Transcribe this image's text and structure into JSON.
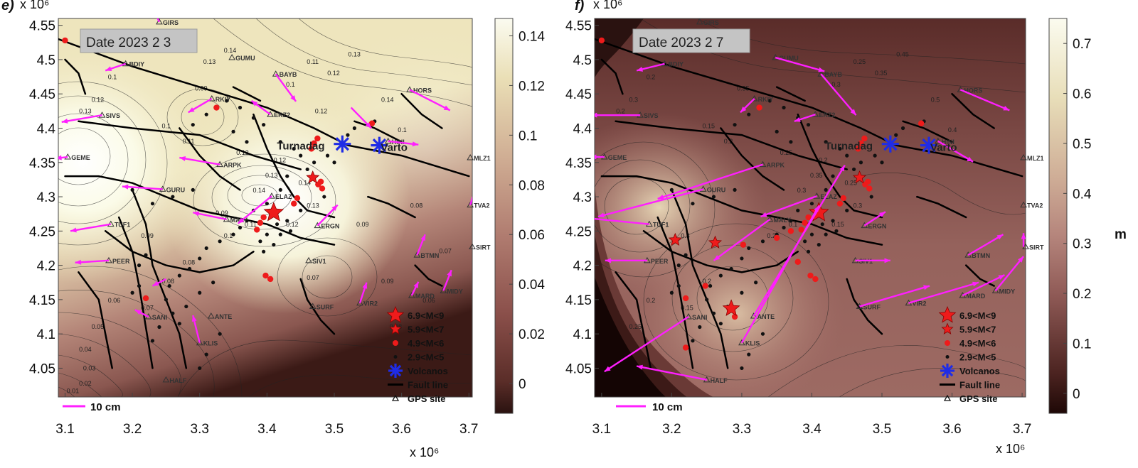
{
  "panels": [
    {
      "id": "e",
      "panel_letter": "e)",
      "date_label": "Date 2023 2 3",
      "y_exponent_label": "x 10⁶",
      "colorbar_ticks": [
        "0.14",
        "0.12",
        "0.1",
        "0.08",
        "0.06",
        "0.04",
        "0.02",
        "0"
      ],
      "colorbar_unit": "",
      "contour_labels": [
        "0.1",
        "0.12",
        "0.13",
        "0.09",
        "0.1",
        "0.11",
        "0.12",
        "0.14",
        "0.13",
        "0.12",
        "0.14",
        "0.13",
        "0.12",
        "0.11",
        "0.1",
        "0.1",
        "0.11",
        "0.12",
        "0.13",
        "0.14",
        "0.1",
        "0.09",
        "0.08",
        "0.07",
        "0.06",
        "0.05",
        "0.04",
        "0.03",
        "0.02",
        "0.01",
        "0.09",
        "0.08",
        "0.07",
        "0.06",
        "0.07",
        "0.09",
        "0.08",
        "0.13",
        "0.14",
        "0.12",
        "0.08",
        "0.09"
      ],
      "volcano_labels": [
        "Turnadag",
        "Varto"
      ],
      "scale_label": "10 cm"
    },
    {
      "id": "f",
      "panel_letter": "f)",
      "date_label": "Date 2023 2 7",
      "y_exponent_label": "x 10⁶",
      "colorbar_ticks": [
        "0.7",
        "0.6",
        "0.5",
        "0.4",
        "0.3",
        "0.2",
        "0.1",
        "0"
      ],
      "colorbar_unit": "m",
      "contour_labels": [
        "0.2",
        "0.3",
        "0.2",
        "0.35",
        "0.15",
        "0.2",
        "0.25",
        "0.3",
        "0.35",
        "0.2",
        "0.25",
        "0.3",
        "0.15",
        "0.1",
        "0.2",
        "0.3",
        "0.25",
        "0.35",
        "0.45",
        "0.5",
        "0.4",
        "0.3",
        "0.2",
        "0.15",
        "0.2",
        "0.25"
      ],
      "volcano_labels": [
        "Turnadag",
        "Varto"
      ],
      "scale_label": "10 cm"
    }
  ],
  "x_exponent_label": "x 10⁶",
  "x_ticks": [
    "3.1",
    "3.2",
    "3.3",
    "3.4",
    "3.5",
    "3.6",
    "3.7"
  ],
  "y_ticks": [
    "4.55",
    "4.5",
    "4.45",
    "4.4",
    "4.35",
    "4.3",
    "4.25",
    "4.2",
    "4.15",
    "4.1",
    "4.05"
  ],
  "x_range": [
    3.09,
    3.705
  ],
  "y_range": [
    4.008,
    4.56
  ],
  "legend": [
    {
      "symbol": "star-large",
      "label": "6.9<M<9"
    },
    {
      "symbol": "star-small",
      "label": "5.9<M<7"
    },
    {
      "symbol": "dot-red",
      "label": "4.9<M<6"
    },
    {
      "symbol": "dot-black",
      "label": "2.9<M<5"
    },
    {
      "symbol": "volcano",
      "label": "Volcanos"
    },
    {
      "symbol": "fault-line",
      "label": "Fault line"
    },
    {
      "symbol": "gps-triangle",
      "label": "GPS site"
    }
  ],
  "gps_stations": [
    {
      "name": "GIRS",
      "x": 3.24,
      "y": 4.555
    },
    {
      "name": "BDIY",
      "x": 3.19,
      "y": 4.494
    },
    {
      "name": "GUMU",
      "x": 3.348,
      "y": 4.503
    },
    {
      "name": "BAYB",
      "x": 3.413,
      "y": 4.479
    },
    {
      "name": "HORS",
      "x": 3.612,
      "y": 4.456
    },
    {
      "name": "RKIY",
      "x": 3.318,
      "y": 4.443
    },
    {
      "name": "SIVS",
      "x": 3.155,
      "y": 4.419
    },
    {
      "name": "ERZ2",
      "x": 3.405,
      "y": 4.42
    },
    {
      "name": "HINI",
      "x": 3.58,
      "y": 4.381
    },
    {
      "name": "GEME",
      "x": 3.104,
      "y": 4.358
    },
    {
      "name": "MLZ1",
      "x": 3.702,
      "y": 4.357
    },
    {
      "name": "ARPK",
      "x": 3.33,
      "y": 4.347
    },
    {
      "name": "GURU",
      "x": 3.245,
      "y": 4.311
    },
    {
      "name": "ELAZ",
      "x": 3.407,
      "y": 4.301
    },
    {
      "name": "TVA2",
      "x": 3.702,
      "y": 4.288
    },
    {
      "name": "TUF1",
      "x": 3.168,
      "y": 4.26
    },
    {
      "name": "MALY",
      "x": 3.34,
      "y": 4.267
    },
    {
      "name": "ERGN",
      "x": 3.475,
      "y": 4.258
    },
    {
      "name": "BTMN",
      "x": 3.623,
      "y": 4.215
    },
    {
      "name": "SIRT",
      "x": 3.705,
      "y": 4.227
    },
    {
      "name": "PEER",
      "x": 3.165,
      "y": 4.207
    },
    {
      "name": "SIV1",
      "x": 3.462,
      "y": 4.207
    },
    {
      "name": "MIDY",
      "x": 3.662,
      "y": 4.163
    },
    {
      "name": "MARD",
      "x": 3.615,
      "y": 4.156
    },
    {
      "name": "VIR2",
      "x": 3.538,
      "y": 4.145
    },
    {
      "name": "SURF",
      "x": 3.468,
      "y": 4.14
    },
    {
      "name": "ANTE",
      "x": 3.317,
      "y": 4.126
    },
    {
      "name": "SANI",
      "x": 3.224,
      "y": 4.125
    },
    {
      "name": "KLIS",
      "x": 3.3,
      "y": 4.087
    },
    {
      "name": "HALF",
      "x": 3.25,
      "y": 4.033
    }
  ],
  "volcanoes": [
    {
      "name": "Turnadag",
      "x": 3.512,
      "y": 4.377
    },
    {
      "name": "Varto",
      "x": 3.567,
      "y": 4.375
    }
  ],
  "earthquakes_large": [
    {
      "x": 3.41,
      "y": 4.277
    }
  ],
  "earthquakes_medium": [
    {
      "x": 3.468,
      "y": 4.328
    }
  ],
  "earthquakes_medium_f": [
    {
      "x": 3.468,
      "y": 4.328
    },
    {
      "x": 3.205,
      "y": 4.237
    },
    {
      "x": 3.262,
      "y": 4.233
    }
  ],
  "earthquakes_red_dots": [
    {
      "x": 3.48,
      "y": 4.322
    },
    {
      "x": 3.482,
      "y": 4.312
    },
    {
      "x": 3.476,
      "y": 4.318
    },
    {
      "x": 3.466,
      "y": 4.37
    },
    {
      "x": 3.47,
      "y": 4.378
    },
    {
      "x": 3.475,
      "y": 4.385
    },
    {
      "x": 3.39,
      "y": 4.262
    },
    {
      "x": 3.385,
      "y": 4.252
    },
    {
      "x": 3.395,
      "y": 4.27
    },
    {
      "x": 3.44,
      "y": 4.29
    },
    {
      "x": 3.445,
      "y": 4.298
    },
    {
      "x": 3.398,
      "y": 4.185
    },
    {
      "x": 3.405,
      "y": 4.18
    },
    {
      "x": 3.22,
      "y": 4.152
    },
    {
      "x": 3.556,
      "y": 4.407
    },
    {
      "x": 3.325,
      "y": 4.43
    },
    {
      "x": 3.1,
      "y": 4.528
    }
  ],
  "earthquakes_red_dots_f_extra": [
    {
      "x": 3.282,
      "y": 4.137
    },
    {
      "x": 3.29,
      "y": 4.125
    },
    {
      "x": 3.302,
      "y": 4.23
    },
    {
      "x": 3.35,
      "y": 4.24
    },
    {
      "x": 3.37,
      "y": 4.25
    },
    {
      "x": 3.38,
      "y": 4.205
    },
    {
      "x": 3.22,
      "y": 4.08
    },
    {
      "x": 3.248,
      "y": 4.17
    }
  ],
  "earthquakes_black_dots": [
    {
      "x": 3.34,
      "y": 4.44
    },
    {
      "x": 3.36,
      "y": 4.43
    },
    {
      "x": 3.38,
      "y": 4.415
    },
    {
      "x": 3.395,
      "y": 4.405
    },
    {
      "x": 3.31,
      "y": 4.42
    },
    {
      "x": 3.29,
      "y": 4.405
    },
    {
      "x": 3.35,
      "y": 4.395
    },
    {
      "x": 3.37,
      "y": 4.38
    },
    {
      "x": 3.42,
      "y": 4.38
    },
    {
      "x": 3.44,
      "y": 4.37
    },
    {
      "x": 3.45,
      "y": 4.36
    },
    {
      "x": 3.49,
      "y": 4.36
    },
    {
      "x": 3.5,
      "y": 4.35
    },
    {
      "x": 3.43,
      "y": 4.33
    },
    {
      "x": 3.42,
      "y": 4.31
    },
    {
      "x": 3.4,
      "y": 4.29
    },
    {
      "x": 3.38,
      "y": 4.28
    },
    {
      "x": 3.37,
      "y": 4.265
    },
    {
      "x": 3.36,
      "y": 4.255
    },
    {
      "x": 3.35,
      "y": 4.245
    },
    {
      "x": 3.33,
      "y": 4.235
    },
    {
      "x": 3.31,
      "y": 4.225
    },
    {
      "x": 3.3,
      "y": 4.21
    },
    {
      "x": 3.285,
      "y": 4.195
    },
    {
      "x": 3.27,
      "y": 4.185
    },
    {
      "x": 3.255,
      "y": 4.17
    },
    {
      "x": 3.25,
      "y": 4.15
    },
    {
      "x": 3.26,
      "y": 4.13
    },
    {
      "x": 3.27,
      "y": 4.115
    },
    {
      "x": 3.24,
      "y": 4.11
    },
    {
      "x": 3.23,
      "y": 4.09
    },
    {
      "x": 3.3,
      "y": 4.16
    },
    {
      "x": 3.32,
      "y": 4.175
    },
    {
      "x": 3.28,
      "y": 4.14
    },
    {
      "x": 3.46,
      "y": 4.34
    },
    {
      "x": 3.47,
      "y": 4.35
    },
    {
      "x": 3.53,
      "y": 4.4
    },
    {
      "x": 3.56,
      "y": 4.41
    },
    {
      "x": 3.52,
      "y": 4.39
    },
    {
      "x": 3.485,
      "y": 4.3
    },
    {
      "x": 3.45,
      "y": 4.28
    },
    {
      "x": 3.43,
      "y": 4.265
    },
    {
      "x": 3.435,
      "y": 4.25
    },
    {
      "x": 3.415,
      "y": 4.26
    },
    {
      "x": 3.42,
      "y": 4.245
    },
    {
      "x": 3.4,
      "y": 4.245
    },
    {
      "x": 3.39,
      "y": 4.235
    },
    {
      "x": 3.41,
      "y": 4.23
    },
    {
      "x": 3.395,
      "y": 4.22
    },
    {
      "x": 3.2,
      "y": 4.31
    },
    {
      "x": 3.23,
      "y": 4.29
    },
    {
      "x": 3.26,
      "y": 4.3
    },
    {
      "x": 3.29,
      "y": 4.31
    },
    {
      "x": 3.21,
      "y": 4.2
    },
    {
      "x": 3.22,
      "y": 4.215
    },
    {
      "x": 3.2,
      "y": 4.16
    },
    {
      "x": 3.21,
      "y": 4.17
    },
    {
      "x": 3.3,
      "y": 4.05
    },
    {
      "x": 3.31,
      "y": 4.07
    },
    {
      "x": 3.33,
      "y": 4.1
    }
  ],
  "gps_vectors_e": [
    {
      "x": 3.24,
      "y": 4.555,
      "dx": -0.008,
      "dy": 0.016
    },
    {
      "x": 3.19,
      "y": 4.494,
      "dx": -0.03,
      "dy": -0.01
    },
    {
      "x": 3.413,
      "y": 4.479,
      "dx": 0.03,
      "dy": -0.04
    },
    {
      "x": 3.318,
      "y": 4.443,
      "dx": -0.035,
      "dy": -0.02
    },
    {
      "x": 3.155,
      "y": 4.419,
      "dx": -0.06,
      "dy": -0.01
    },
    {
      "x": 3.405,
      "y": 4.42,
      "dx": -0.028,
      "dy": 0.02
    },
    {
      "x": 3.104,
      "y": 4.358,
      "dx": -0.018,
      "dy": -0.002
    },
    {
      "x": 3.33,
      "y": 4.347,
      "dx": -0.06,
      "dy": 0.01
    },
    {
      "x": 3.245,
      "y": 4.311,
      "dx": -0.06,
      "dy": 0.004
    },
    {
      "x": 3.407,
      "y": 4.301,
      "dx": -0.05,
      "dy": -0.04
    },
    {
      "x": 3.34,
      "y": 4.267,
      "dx": -0.05,
      "dy": 0.01
    },
    {
      "x": 3.168,
      "y": 4.26,
      "dx": -0.06,
      "dy": -0.01
    },
    {
      "x": 3.165,
      "y": 4.207,
      "dx": -0.05,
      "dy": -0.003
    },
    {
      "x": 3.475,
      "y": 4.258,
      "dx": 0.03,
      "dy": 0.03
    },
    {
      "x": 3.612,
      "y": 4.456,
      "dx": 0.06,
      "dy": -0.03
    },
    {
      "x": 3.58,
      "y": 4.381,
      "dx": 0.045,
      "dy": -0.005
    },
    {
      "x": 3.538,
      "y": 4.145,
      "dx": 0.01,
      "dy": 0.03
    },
    {
      "x": 3.623,
      "y": 4.215,
      "dx": 0.012,
      "dy": 0.03
    },
    {
      "x": 3.662,
      "y": 4.163,
      "dx": 0.012,
      "dy": 0.03
    },
    {
      "x": 3.702,
      "y": 4.288,
      "dx": 0.01,
      "dy": 0.03
    },
    {
      "x": 3.3,
      "y": 4.087,
      "dx": -0.01,
      "dy": 0.04
    },
    {
      "x": 3.224,
      "y": 4.125,
      "dx": -0.02,
      "dy": 0.01
    },
    {
      "x": 3.25,
      "y": 4.18,
      "dx": -0.02,
      "dy": -0.01
    },
    {
      "x": 3.525,
      "y": 4.43,
      "dx": 0.03,
      "dy": -0.03
    },
    {
      "x": 3.615,
      "y": 4.156,
      "dx": 0.01,
      "dy": 0.02
    }
  ],
  "gps_vectors_f": [
    {
      "x": 3.19,
      "y": 4.494,
      "dx": -0.04,
      "dy": -0.01
    },
    {
      "x": 3.348,
      "y": 4.503,
      "dx": 0.07,
      "dy": -0.02
    },
    {
      "x": 3.413,
      "y": 4.479,
      "dx": 0.05,
      "dy": -0.06
    },
    {
      "x": 3.612,
      "y": 4.456,
      "dx": 0.07,
      "dy": -0.03
    },
    {
      "x": 3.318,
      "y": 4.443,
      "dx": -0.02,
      "dy": -0.02
    },
    {
      "x": 3.155,
      "y": 4.419,
      "dx": -0.07,
      "dy": 0.0
    },
    {
      "x": 3.405,
      "y": 4.42,
      "dx": -0.03,
      "dy": -0.01
    },
    {
      "x": 3.58,
      "y": 4.381,
      "dx": 0.05,
      "dy": -0.03
    },
    {
      "x": 3.104,
      "y": 4.358,
      "dx": -0.02,
      "dy": 0.0
    },
    {
      "x": 3.33,
      "y": 4.347,
      "dx": -0.15,
      "dy": -0.05
    },
    {
      "x": 3.245,
      "y": 4.311,
      "dx": -0.15,
      "dy": -0.04
    },
    {
      "x": 3.407,
      "y": 4.301,
      "dx": -0.08,
      "dy": -0.03
    },
    {
      "x": 3.168,
      "y": 4.26,
      "dx": -0.1,
      "dy": 0.01
    },
    {
      "x": 3.34,
      "y": 4.267,
      "dx": -0.08,
      "dy": -0.06
    },
    {
      "x": 3.475,
      "y": 4.258,
      "dx": 0.03,
      "dy": 0.02
    },
    {
      "x": 3.462,
      "y": 4.207,
      "dx": 0.05,
      "dy": 0.0
    },
    {
      "x": 3.165,
      "y": 4.207,
      "dx": -0.06,
      "dy": 0.0
    },
    {
      "x": 3.317,
      "y": 4.126,
      "dx": 0.13,
      "dy": 0.22
    },
    {
      "x": 3.3,
      "y": 4.087,
      "dx": 0.11,
      "dy": 0.2
    },
    {
      "x": 3.224,
      "y": 4.125,
      "dx": -0.12,
      "dy": -0.08
    },
    {
      "x": 3.25,
      "y": 4.033,
      "dx": -0.1,
      "dy": 0.02
    },
    {
      "x": 3.468,
      "y": 4.14,
      "dx": 0.1,
      "dy": 0.03
    },
    {
      "x": 3.538,
      "y": 4.145,
      "dx": 0.1,
      "dy": 0.03
    },
    {
      "x": 3.623,
      "y": 4.215,
      "dx": 0.05,
      "dy": 0.03
    },
    {
      "x": 3.615,
      "y": 4.156,
      "dx": 0.06,
      "dy": 0.03
    },
    {
      "x": 3.662,
      "y": 4.163,
      "dx": 0.04,
      "dy": 0.05
    },
    {
      "x": 3.702,
      "y": 4.227,
      "dx": 0.0,
      "dy": 0.02
    }
  ],
  "colors": {
    "vector": "#ff1fff",
    "volcano": "#1f2ce6",
    "quake": "#ee1b1b",
    "fault": "#000000",
    "label_box": "#c7c7c7"
  }
}
